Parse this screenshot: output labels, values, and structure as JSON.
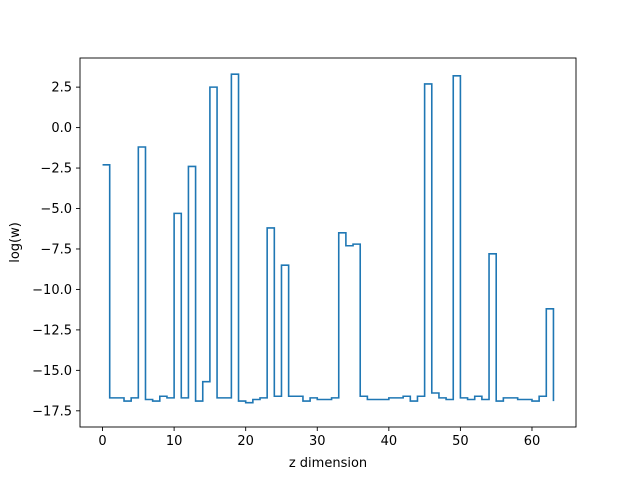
{
  "chart_data": {
    "type": "line",
    "title": "",
    "xlabel": "z dimension",
    "ylabel": "log(w)",
    "drawstyle": "steps-post",
    "line_color": "#1f77b4",
    "xlim": [
      -3.15,
      66.15
    ],
    "ylim": [
      -18.5,
      4.3
    ],
    "xticks": [
      0,
      10,
      20,
      30,
      40,
      50,
      60
    ],
    "yticks": [
      -17.5,
      -15.0,
      -12.5,
      -10.0,
      -7.5,
      -5.0,
      -2.5,
      0.0,
      2.5
    ],
    "xtick_labels": [
      "0",
      "10",
      "20",
      "30",
      "40",
      "50",
      "60"
    ],
    "ytick_labels": [
      "−17.5",
      "−15.0",
      "−12.5",
      "−10.0",
      "−7.5",
      "−5.0",
      "−2.5",
      "0.0",
      "2.5"
    ],
    "grid": false,
    "legend": "none",
    "series": [
      {
        "x": [
          0,
          1,
          2,
          3,
          4,
          5,
          6,
          7,
          8,
          9,
          10,
          11,
          12,
          13,
          14,
          15,
          16,
          17,
          18,
          19,
          20,
          21,
          22,
          23,
          24,
          25,
          26,
          27,
          28,
          29,
          30,
          31,
          32,
          33,
          34,
          35,
          36,
          37,
          38,
          39,
          40,
          41,
          42,
          43,
          44,
          45,
          46,
          47,
          48,
          49,
          50,
          51,
          52,
          53,
          54,
          55,
          56,
          57,
          58,
          59,
          60,
          61,
          62,
          63
        ],
        "values": [
          -2.3,
          -16.7,
          -16.7,
          -16.9,
          -16.7,
          -1.2,
          -16.8,
          -16.9,
          -16.6,
          -16.7,
          -5.3,
          -16.7,
          -2.4,
          -16.9,
          -15.7,
          2.5,
          -16.7,
          -16.7,
          3.3,
          -16.9,
          -17.0,
          -16.8,
          -16.7,
          -6.2,
          -16.6,
          -8.5,
          -16.6,
          -16.6,
          -16.9,
          -16.7,
          -16.8,
          -16.8,
          -16.7,
          -6.5,
          -7.3,
          -7.2,
          -16.6,
          -16.8,
          -16.8,
          -16.8,
          -16.7,
          -16.7,
          -16.6,
          -16.9,
          -16.6,
          2.7,
          -16.4,
          -16.7,
          -16.8,
          3.2,
          -16.7,
          -16.8,
          -16.6,
          -16.8,
          -7.8,
          -16.9,
          -16.7,
          -16.7,
          -16.8,
          -16.8,
          -16.9,
          -16.6,
          -11.2,
          -16.9
        ]
      }
    ]
  }
}
